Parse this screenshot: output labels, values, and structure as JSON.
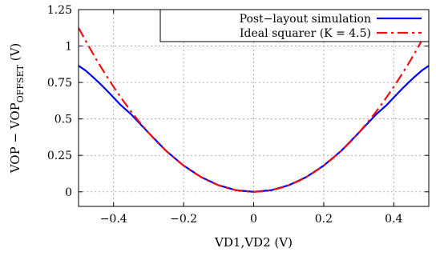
{
  "chart_data": {
    "type": "line",
    "xlabel": "VD1,VD2 (V)",
    "ylabel": {
      "prefix": "VOP − VOP",
      "subscript": "OFFSET",
      "suffix": " (V)"
    },
    "xlim": [
      -0.5,
      0.5
    ],
    "ylim": [
      -0.1,
      1.25
    ],
    "x_ticks": [
      -0.4,
      -0.2,
      0,
      0.2,
      0.4
    ],
    "x_tick_labels": [
      "−0.4",
      "−0.2",
      "0",
      "0.2",
      "0.4"
    ],
    "y_ticks": [
      0,
      0.25,
      0.5,
      0.75,
      1,
      1.25
    ],
    "y_tick_labels": [
      "0",
      "0.25",
      "0.5",
      "0.75",
      "1",
      "1.25"
    ],
    "grid": true,
    "legend_position": "top-right",
    "series": [
      {
        "name": "Post−layout simulation",
        "color": "#0000ff",
        "style": "solid",
        "x": [
          -0.5,
          -0.48,
          -0.46,
          -0.44,
          -0.42,
          -0.4,
          -0.38,
          -0.35,
          -0.3,
          -0.25,
          -0.2,
          -0.15,
          -0.1,
          -0.05,
          0,
          0.05,
          0.1,
          0.15,
          0.2,
          0.25,
          0.3,
          0.35,
          0.38,
          0.4,
          0.42,
          0.44,
          0.46,
          0.48,
          0.5
        ],
        "y": [
          0.865,
          0.832,
          0.79,
          0.745,
          0.697,
          0.647,
          0.596,
          0.532,
          0.405,
          0.281,
          0.18,
          0.101,
          0.045,
          0.011,
          0,
          0.011,
          0.045,
          0.101,
          0.18,
          0.281,
          0.405,
          0.532,
          0.596,
          0.647,
          0.697,
          0.745,
          0.79,
          0.832,
          0.865
        ]
      },
      {
        "name": "Ideal squarer (K = 4.5)",
        "color": "#ee1111",
        "style": "dash-dot",
        "x": [
          -0.5,
          -0.475,
          -0.45,
          -0.425,
          -0.4,
          -0.375,
          -0.35,
          -0.325,
          -0.3,
          -0.275,
          -0.25,
          -0.225,
          -0.2,
          -0.175,
          -0.15,
          -0.125,
          -0.1,
          -0.075,
          -0.05,
          -0.025,
          0,
          0.025,
          0.05,
          0.075,
          0.1,
          0.125,
          0.15,
          0.175,
          0.2,
          0.225,
          0.25,
          0.275,
          0.3,
          0.325,
          0.35,
          0.375,
          0.4,
          0.425,
          0.45,
          0.475,
          0.5
        ],
        "y": [
          1.125,
          1.016,
          0.911,
          0.813,
          0.72,
          0.633,
          0.551,
          0.475,
          0.405,
          0.34,
          0.281,
          0.228,
          0.18,
          0.138,
          0.101,
          0.07,
          0.045,
          0.025,
          0.011,
          0.003,
          0,
          0.003,
          0.011,
          0.025,
          0.045,
          0.07,
          0.101,
          0.138,
          0.18,
          0.228,
          0.281,
          0.34,
          0.405,
          0.475,
          0.551,
          0.633,
          0.72,
          0.813,
          0.911,
          1.016,
          1.125
        ]
      }
    ]
  }
}
